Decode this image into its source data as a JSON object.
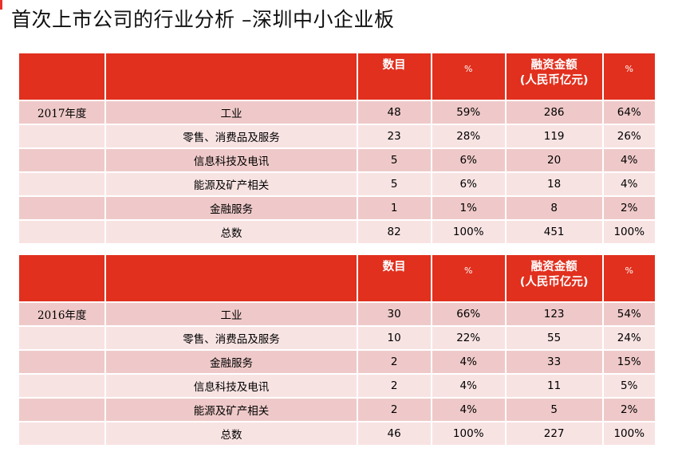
{
  "title": "首次上市公司的行业分析 –深圳中小企业板",
  "header": {
    "count": "数目",
    "pct": "%",
    "financing_line1": "融资金额",
    "financing_line2": "(人民币亿元)",
    "pct2": "%"
  },
  "tables": [
    {
      "year": "2017年度",
      "rows": [
        {
          "industry": "工业",
          "count": "48",
          "count_pct": "59%",
          "amount": "286",
          "amount_pct": "64%"
        },
        {
          "industry": "零售、消费品及服务",
          "count": "23",
          "count_pct": "28%",
          "amount": "119",
          "amount_pct": "26%"
        },
        {
          "industry": "信息科技及电讯",
          "count": "5",
          "count_pct": "6%",
          "amount": "20",
          "amount_pct": "4%"
        },
        {
          "industry": "能源及矿产相关",
          "count": "5",
          "count_pct": "6%",
          "amount": "18",
          "amount_pct": "4%"
        },
        {
          "industry": "金融服务",
          "count": "1",
          "count_pct": "1%",
          "amount": "8",
          "amount_pct": "2%"
        },
        {
          "industry": "总数",
          "count": "82",
          "count_pct": "100%",
          "amount": "451",
          "amount_pct": "100%"
        }
      ]
    },
    {
      "year": "2016年度",
      "rows": [
        {
          "industry": "工业",
          "count": "30",
          "count_pct": "66%",
          "amount": "123",
          "amount_pct": "54%"
        },
        {
          "industry": "零售、消费品及服务",
          "count": "10",
          "count_pct": "22%",
          "amount": "55",
          "amount_pct": "24%"
        },
        {
          "industry": "金融服务",
          "count": "2",
          "count_pct": "4%",
          "amount": "33",
          "amount_pct": "15%"
        },
        {
          "industry": "信息科技及电讯",
          "count": "2",
          "count_pct": "4%",
          "amount": "11",
          "amount_pct": "5%"
        },
        {
          "industry": "能源及矿产相关",
          "count": "2",
          "count_pct": "4%",
          "amount": "5",
          "amount_pct": "2%"
        },
        {
          "industry": "总数",
          "count": "46",
          "count_pct": "100%",
          "amount": "227",
          "amount_pct": "100%"
        }
      ]
    }
  ],
  "colors": {
    "header_red": "#e1301e",
    "row_dark": "#efc9c9",
    "row_light": "#f8e3e3"
  }
}
